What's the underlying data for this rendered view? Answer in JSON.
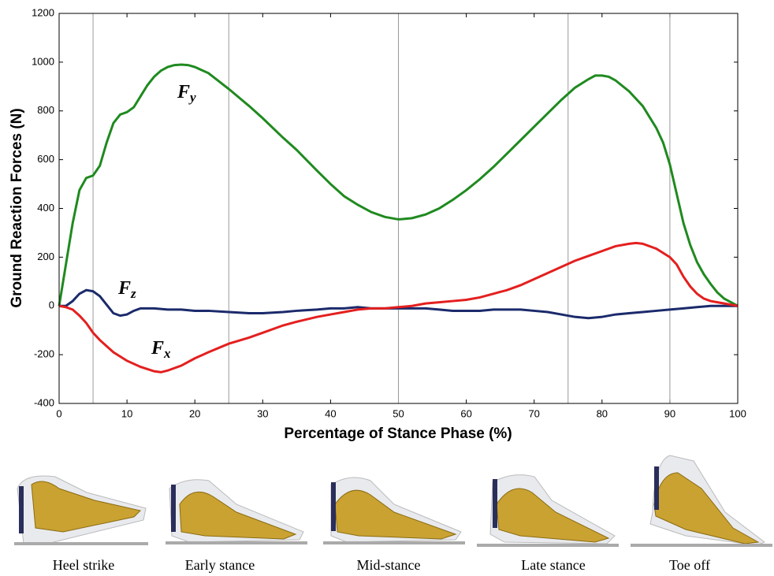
{
  "chart_data": {
    "type": "line",
    "x_label": "Percentage of Stance Phase (%)",
    "y_label": "Ground Reaction Forces (N)",
    "xlim": [
      0,
      100
    ],
    "ylim": [
      -400,
      1200
    ],
    "xticks": [
      0,
      10,
      20,
      30,
      40,
      50,
      60,
      70,
      80,
      90,
      100
    ],
    "yticks": [
      -400,
      -200,
      0,
      200,
      400,
      600,
      800,
      1000,
      1200
    ],
    "phase_lines": [
      5,
      25,
      50,
      75,
      90
    ],
    "series": [
      {
        "name": "Fy",
        "color": "#1f8a1f",
        "x": [
          0,
          1,
          2,
          3,
          4,
          5,
          6,
          7,
          8,
          9,
          10,
          11,
          12,
          13,
          14,
          15,
          16,
          17,
          18,
          19,
          20,
          22,
          25,
          28,
          30,
          33,
          35,
          38,
          40,
          42,
          44,
          46,
          48,
          50,
          52,
          54,
          56,
          58,
          60,
          62,
          64,
          66,
          68,
          70,
          72,
          74,
          76,
          78,
          79,
          80,
          81,
          82,
          84,
          86,
          88,
          89,
          90,
          91,
          92,
          93,
          94,
          95,
          96,
          97,
          98,
          99,
          100
        ],
        "values": [
          0,
          170,
          340,
          475,
          525,
          535,
          575,
          670,
          750,
          785,
          795,
          815,
          860,
          905,
          940,
          965,
          980,
          988,
          990,
          988,
          980,
          955,
          890,
          820,
          770,
          690,
          640,
          555,
          500,
          450,
          415,
          385,
          365,
          355,
          360,
          375,
          400,
          435,
          475,
          520,
          570,
          625,
          680,
          735,
          790,
          845,
          895,
          930,
          945,
          945,
          940,
          925,
          880,
          820,
          730,
          670,
          580,
          460,
          340,
          250,
          180,
          130,
          90,
          55,
          30,
          15,
          0
        ]
      },
      {
        "name": "Fz",
        "color": "#1b2a6b",
        "x": [
          0,
          1,
          2,
          3,
          4,
          5,
          6,
          7,
          8,
          9,
          10,
          11,
          12,
          14,
          16,
          18,
          20,
          22,
          25,
          28,
          30,
          33,
          35,
          38,
          40,
          42,
          44,
          46,
          48,
          50,
          52,
          54,
          56,
          58,
          60,
          62,
          64,
          66,
          68,
          70,
          72,
          74,
          76,
          78,
          80,
          82,
          84,
          86,
          88,
          90,
          92,
          94,
          96,
          98,
          100
        ],
        "values": [
          0,
          0,
          20,
          50,
          65,
          60,
          40,
          5,
          -30,
          -40,
          -35,
          -20,
          -10,
          -10,
          -15,
          -15,
          -20,
          -20,
          -25,
          -30,
          -30,
          -25,
          -20,
          -15,
          -10,
          -10,
          -5,
          -10,
          -10,
          -10,
          -10,
          -10,
          -15,
          -20,
          -20,
          -20,
          -15,
          -15,
          -15,
          -20,
          -25,
          -35,
          -45,
          -50,
          -45,
          -35,
          -30,
          -25,
          -20,
          -15,
          -10,
          -5,
          0,
          0,
          0
        ]
      },
      {
        "name": "Fx",
        "color": "#e41f1f",
        "x": [
          0,
          1,
          2,
          3,
          4,
          5,
          6,
          8,
          10,
          12,
          14,
          15,
          16,
          18,
          20,
          22,
          25,
          28,
          30,
          33,
          35,
          38,
          40,
          42,
          44,
          46,
          48,
          50,
          52,
          54,
          56,
          58,
          60,
          62,
          64,
          66,
          68,
          70,
          72,
          74,
          76,
          78,
          80,
          82,
          84,
          85,
          86,
          88,
          90,
          91,
          92,
          93,
          94,
          95,
          96,
          97,
          98,
          99,
          100
        ],
        "values": [
          0,
          -5,
          -15,
          -40,
          -70,
          -110,
          -140,
          -190,
          -225,
          -250,
          -268,
          -272,
          -265,
          -245,
          -215,
          -190,
          -155,
          -130,
          -110,
          -80,
          -65,
          -45,
          -35,
          -25,
          -15,
          -10,
          -10,
          -5,
          0,
          10,
          15,
          20,
          25,
          35,
          50,
          65,
          85,
          110,
          135,
          160,
          185,
          205,
          225,
          245,
          255,
          258,
          255,
          235,
          200,
          170,
          120,
          80,
          50,
          30,
          20,
          15,
          10,
          5,
          0
        ]
      }
    ],
    "stages": [
      "Heel strike",
      "Early stance",
      "Mid-stance",
      "Late stance",
      "Toe off"
    ]
  }
}
